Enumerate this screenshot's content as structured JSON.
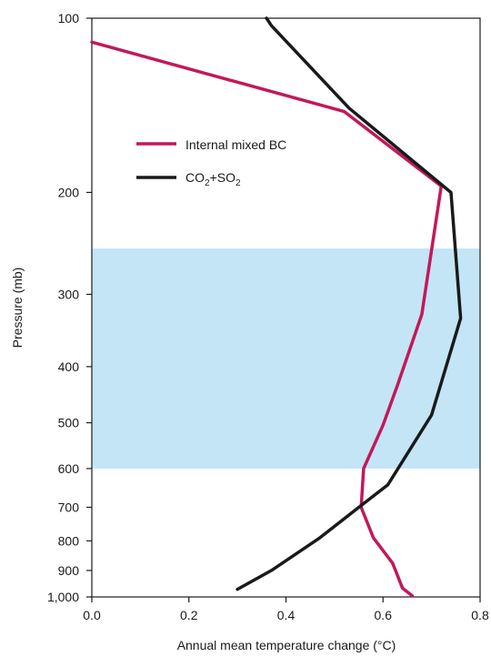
{
  "chart_data": {
    "type": "line",
    "xlabel": "Annual mean temperature change (°C)",
    "ylabel": "Pressure (mb)",
    "xlim": [
      0,
      0.8
    ],
    "ylim": [
      1000,
      100
    ],
    "y_scale": "log",
    "x_ticks": [
      "0.0",
      "0.2",
      "0.4",
      "0.6",
      "0.8"
    ],
    "y_ticks": [
      {
        "value": 100,
        "label": "100"
      },
      {
        "value": 200,
        "label": "200"
      },
      {
        "value": 300,
        "label": "300"
      },
      {
        "value": 400,
        "label": "400"
      },
      {
        "value": 500,
        "label": "500"
      },
      {
        "value": 600,
        "label": "600"
      },
      {
        "value": 700,
        "label": "700"
      },
      {
        "value": 800,
        "label": "800"
      },
      {
        "value": 900,
        "label": "900"
      },
      {
        "value": 1000,
        "label": "1,000"
      }
    ],
    "shaded_band": {
      "from": 250,
      "to": 600,
      "color": "#c3e5f6"
    },
    "legend_position": "upper-middle",
    "series": [
      {
        "name": "Internal mixed BC",
        "color": "#c2185b",
        "points": [
          [
            0.0,
            110
          ],
          [
            0.52,
            145
          ],
          [
            0.72,
            195
          ],
          [
            0.68,
            325
          ],
          [
            0.63,
            430
          ],
          [
            0.6,
            505
          ],
          [
            0.56,
            600
          ],
          [
            0.555,
            700
          ],
          [
            0.58,
            790
          ],
          [
            0.62,
            875
          ],
          [
            0.64,
            965
          ],
          [
            0.66,
            995
          ]
        ]
      },
      {
        "name": "CO2+SO2",
        "name_parts": {
          "a": "CO",
          "a_sub": "2",
          "plus": "+",
          "b": "SO",
          "b_sub": "2"
        },
        "color": "#1a1a1a",
        "points": [
          [
            0.36,
            100
          ],
          [
            0.37,
            103
          ],
          [
            0.53,
            143
          ],
          [
            0.74,
            200
          ],
          [
            0.76,
            330
          ],
          [
            0.7,
            485
          ],
          [
            0.61,
            640
          ],
          [
            0.55,
            700
          ],
          [
            0.47,
            790
          ],
          [
            0.37,
            900
          ],
          [
            0.3,
            970
          ]
        ]
      }
    ]
  }
}
